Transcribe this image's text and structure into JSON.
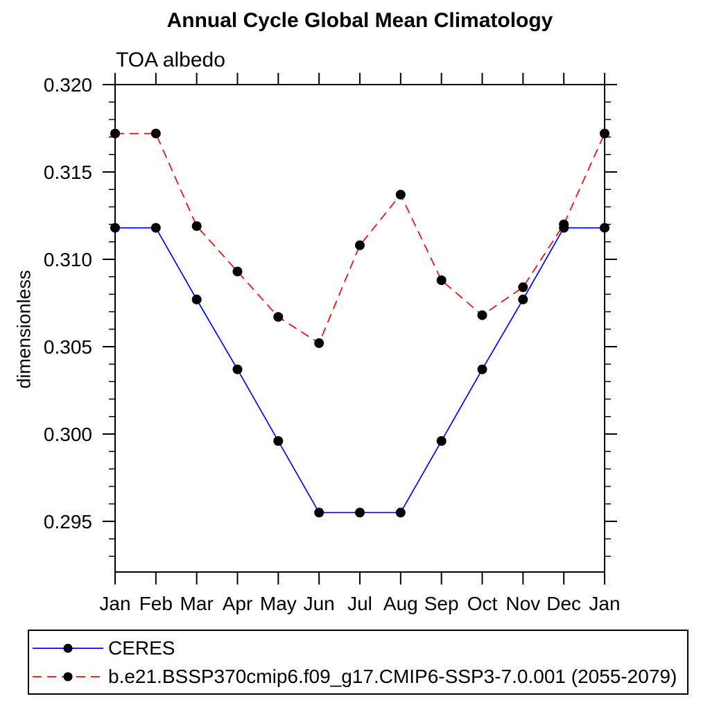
{
  "chart_data": {
    "type": "line",
    "title": "Annual Cycle Global Mean Climatology",
    "subtitle": "TOA albedo",
    "ylabel": "dimensionless",
    "xlabel": "",
    "grid": false,
    "legend_position": "bottom-left",
    "x_categories": [
      "Jan",
      "Feb",
      "Mar",
      "Apr",
      "May",
      "Jun",
      "Jul",
      "Aug",
      "Sep",
      "Oct",
      "Nov",
      "Dec",
      "Jan"
    ],
    "ylim": [
      0.2921,
      0.32
    ],
    "y_major_ticks": [
      {
        "value": 0.32,
        "label": "0.320"
      },
      {
        "value": 0.315,
        "label": "0.315"
      },
      {
        "value": 0.31,
        "label": "0.310"
      },
      {
        "value": 0.305,
        "label": "0.305"
      },
      {
        "value": 0.3,
        "label": "0.300"
      },
      {
        "value": 0.295,
        "label": "0.295"
      }
    ],
    "y_minor_step": 0.001,
    "series": [
      {
        "name": "CERES",
        "color": "#0000ff",
        "dash": "",
        "marker": "filled-circle",
        "marker_color": "#000000",
        "values": [
          0.3118,
          0.3118,
          0.3077,
          0.3037,
          0.2996,
          0.2955,
          0.2955,
          0.2955,
          0.2996,
          0.3037,
          0.3077,
          0.3118,
          0.3118
        ]
      },
      {
        "name": "b.e21.BSSP370cmip6.f09_g17.CMIP6-SSP3-7.0.001 (2055-2079)",
        "color": "#ff0000",
        "dash": "13 8",
        "marker": "filled-circle",
        "marker_color": "#000000",
        "values": [
          0.3172,
          0.3172,
          0.3119,
          0.3093,
          0.3067,
          0.3052,
          0.3108,
          0.3137,
          0.3088,
          0.3068,
          0.3084,
          0.312,
          0.3172
        ]
      }
    ]
  }
}
